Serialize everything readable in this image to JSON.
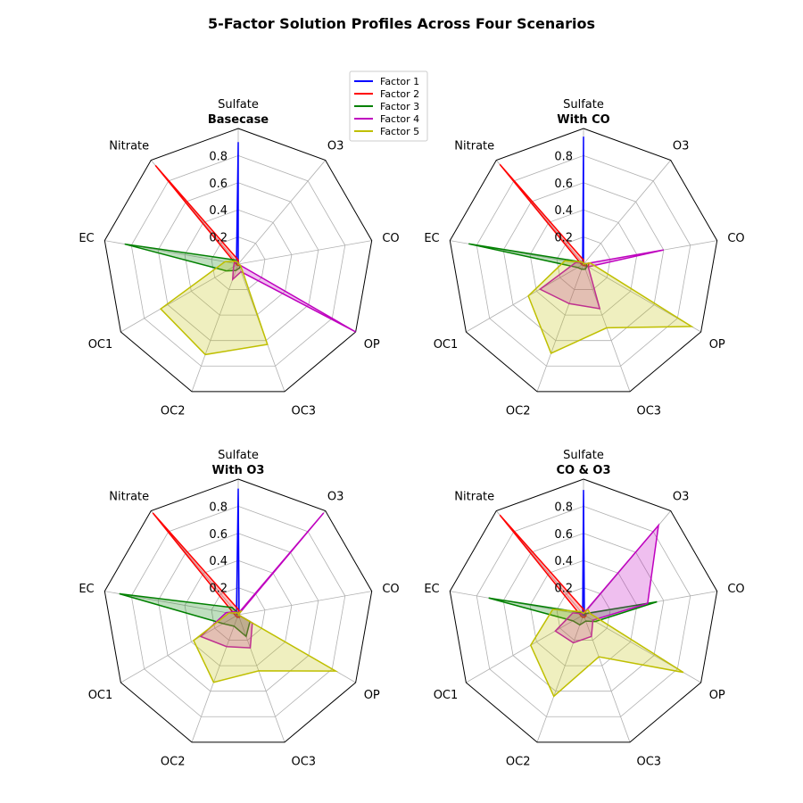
{
  "figure_title": "5-Factor Solution Profiles Across Four Scenarios",
  "chart_data": {
    "type": "radar",
    "axes": [
      "Sulfate",
      "O3",
      "CO",
      "OP",
      "OC3",
      "OC2",
      "OC1",
      "EC",
      "Nitrate"
    ],
    "rlim": [
      0,
      1.0
    ],
    "radial_ticks": [
      0.2,
      0.4,
      0.6,
      0.8
    ],
    "grid": true,
    "legend_placement": "between top panels",
    "series_colors": {
      "Factor 1": "#0000ff",
      "Factor 2": "#ff0000",
      "Factor 3": "#008000",
      "Factor 4": "#bf00bf",
      "Factor 5": "#bfbf00"
    },
    "legend": [
      "Factor 1",
      "Factor 2",
      "Factor 3",
      "Factor 4",
      "Factor 5"
    ],
    "panels": [
      {
        "title": "Basecase",
        "missing_axes": [
          "O3",
          "CO"
        ],
        "series": [
          {
            "name": "Factor 1",
            "values": [
              0.9,
              0,
              0,
              0.01,
              0,
              0.01,
              0,
              0.01,
              0.02
            ]
          },
          {
            "name": "Factor 2",
            "values": [
              0.03,
              0,
              0,
              0.02,
              0.01,
              0.01,
              0.01,
              0.02,
              0.95
            ]
          },
          {
            "name": "Factor 3",
            "values": [
              0.01,
              0,
              0,
              0.02,
              0.03,
              0.05,
              0.1,
              0.85,
              0.04
            ]
          },
          {
            "name": "Factor 4",
            "values": [
              0.01,
              0,
              0,
              1.0,
              0.06,
              0.12,
              0.04,
              0.03,
              0.02
            ]
          },
          {
            "name": "Factor 5",
            "values": [
              0.01,
              0,
              0,
              0.02,
              0.63,
              0.71,
              0.66,
              0.1,
              0.03
            ]
          }
        ]
      },
      {
        "title": "With CO",
        "missing_axes": [
          "O3"
        ],
        "series": [
          {
            "name": "Factor 1",
            "values": [
              0.94,
              0,
              0.01,
              0.01,
              0,
              0.01,
              0,
              0.01,
              0.01
            ]
          },
          {
            "name": "Factor 2",
            "values": [
              0.03,
              0,
              0.04,
              0.04,
              0.01,
              0.01,
              0.01,
              0.02,
              0.96
            ]
          },
          {
            "name": "Factor 3",
            "values": [
              0.01,
              0,
              0.02,
              0.03,
              0.04,
              0.04,
              0.05,
              0.86,
              0.02
            ]
          },
          {
            "name": "Factor 4",
            "values": [
              0.01,
              0,
              0.6,
              0.04,
              0.35,
              0.31,
              0.37,
              0.06,
              0.02
            ]
          },
          {
            "name": "Factor 5",
            "values": [
              0.01,
              0,
              0.05,
              0.92,
              0.5,
              0.7,
              0.47,
              0.14,
              0.02
            ]
          }
        ]
      },
      {
        "title": "With O3",
        "missing_axes": [
          "CO"
        ],
        "series": [
          {
            "name": "Factor 1",
            "values": [
              0.93,
              0.01,
              0,
              0.01,
              0,
              0.01,
              0,
              0.01,
              0.02
            ]
          },
          {
            "name": "Factor 2",
            "values": [
              0.04,
              0.02,
              0,
              0.02,
              0.02,
              0.02,
              0.02,
              0.03,
              0.98
            ]
          },
          {
            "name": "Factor 3",
            "values": [
              0.01,
              0.01,
              0,
              0.1,
              0.17,
              0.09,
              0.13,
              0.89,
              0.07
            ]
          },
          {
            "name": "Factor 4",
            "values": [
              0.01,
              0.98,
              0,
              0.12,
              0.26,
              0.25,
              0.32,
              0.09,
              0.03
            ]
          },
          {
            "name": "Factor 5",
            "values": [
              0.01,
              0.04,
              0,
              0.83,
              0.44,
              0.53,
              0.38,
              0.07,
              0.02
            ]
          }
        ]
      },
      {
        "title": "CO & O3",
        "missing_axes": [],
        "series": [
          {
            "name": "Factor 1",
            "values": [
              0.92,
              0.01,
              0.01,
              0.01,
              0,
              0.01,
              0,
              0.01,
              0.01
            ]
          },
          {
            "name": "Factor 2",
            "values": [
              0.04,
              0.02,
              0.02,
              0.02,
              0.02,
              0.02,
              0.02,
              0.03,
              0.96
            ]
          },
          {
            "name": "Factor 3",
            "values": [
              0.01,
              0.01,
              0.55,
              0.1,
              0.05,
              0.08,
              0.09,
              0.71,
              0.02
            ]
          },
          {
            "name": "Factor 4",
            "values": [
              0.01,
              0.86,
              0.48,
              0.08,
              0.17,
              0.22,
              0.24,
              0.08,
              0.01
            ]
          },
          {
            "name": "Factor 5",
            "values": [
              0.01,
              0.05,
              0.05,
              0.85,
              0.33,
              0.64,
              0.45,
              0.23,
              0.03
            ]
          }
        ]
      }
    ]
  }
}
